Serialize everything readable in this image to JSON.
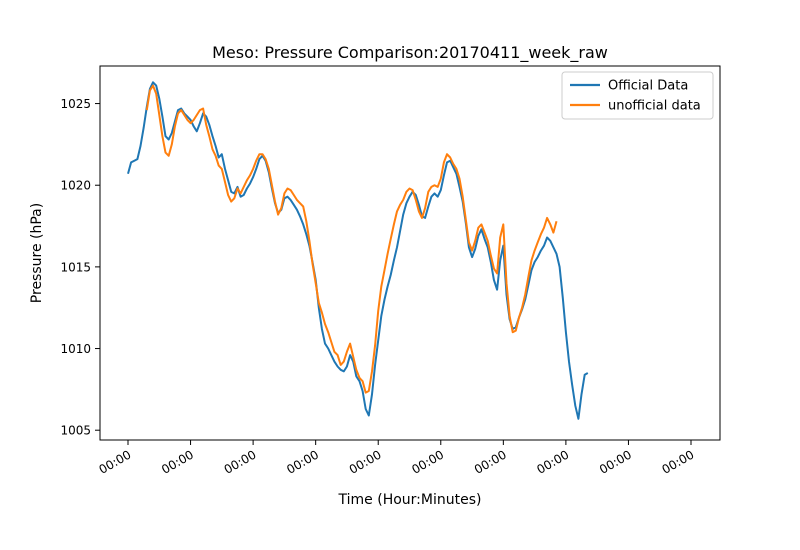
{
  "chart_data": {
    "type": "line",
    "title": "Meso: Pressure Comparison:20170411_week_raw",
    "xlabel": "Time (Hour:Minutes)",
    "ylabel": "Pressure (hPa)",
    "xlim": [
      0,
      9
    ],
    "ylim": [
      1004.4,
      1027.3
    ],
    "x_ticks": [
      0,
      1,
      2,
      3,
      4,
      5,
      6,
      7,
      8,
      9
    ],
    "x_tick_labels": [
      "00:00",
      "00:00",
      "00:00",
      "00:00",
      "00:00",
      "00:00",
      "00:00",
      "00:00",
      "00:00",
      "00:00"
    ],
    "y_ticks": [
      1005,
      1010,
      1015,
      1020,
      1025
    ],
    "grid": false,
    "legend_position": "top-right",
    "series": [
      {
        "name": "Official Data",
        "color": "#1f77b4",
        "points": [
          [
            0.0,
            1020.7
          ],
          [
            0.05,
            1021.4
          ],
          [
            0.1,
            1021.5
          ],
          [
            0.15,
            1021.6
          ],
          [
            0.2,
            1022.4
          ],
          [
            0.25,
            1023.5
          ],
          [
            0.3,
            1024.8
          ],
          [
            0.35,
            1025.9
          ],
          [
            0.4,
            1026.3
          ],
          [
            0.45,
            1026.1
          ],
          [
            0.5,
            1025.3
          ],
          [
            0.55,
            1024.2
          ],
          [
            0.6,
            1023.0
          ],
          [
            0.65,
            1022.8
          ],
          [
            0.7,
            1023.2
          ],
          [
            0.75,
            1023.9
          ],
          [
            0.8,
            1024.6
          ],
          [
            0.85,
            1024.7
          ],
          [
            0.9,
            1024.4
          ],
          [
            0.95,
            1024.2
          ],
          [
            1.0,
            1024.0
          ],
          [
            1.05,
            1023.6
          ],
          [
            1.1,
            1023.3
          ],
          [
            1.15,
            1023.8
          ],
          [
            1.2,
            1024.4
          ],
          [
            1.25,
            1024.2
          ],
          [
            1.3,
            1023.7
          ],
          [
            1.35,
            1023.0
          ],
          [
            1.4,
            1022.4
          ],
          [
            1.45,
            1021.7
          ],
          [
            1.5,
            1021.9
          ],
          [
            1.55,
            1021.0
          ],
          [
            1.6,
            1020.3
          ],
          [
            1.65,
            1019.6
          ],
          [
            1.7,
            1019.5
          ],
          [
            1.75,
            1019.9
          ],
          [
            1.8,
            1019.3
          ],
          [
            1.85,
            1019.4
          ],
          [
            1.9,
            1019.8
          ],
          [
            1.95,
            1020.1
          ],
          [
            2.0,
            1020.5
          ],
          [
            2.05,
            1021.0
          ],
          [
            2.1,
            1021.6
          ],
          [
            2.15,
            1021.8
          ],
          [
            2.2,
            1021.5
          ],
          [
            2.25,
            1020.8
          ],
          [
            2.3,
            1019.8
          ],
          [
            2.35,
            1018.9
          ],
          [
            2.4,
            1018.3
          ],
          [
            2.45,
            1018.5
          ],
          [
            2.5,
            1019.2
          ],
          [
            2.55,
            1019.3
          ],
          [
            2.6,
            1019.1
          ],
          [
            2.65,
            1018.8
          ],
          [
            2.7,
            1018.5
          ],
          [
            2.75,
            1018.1
          ],
          [
            2.8,
            1017.6
          ],
          [
            2.85,
            1017.0
          ],
          [
            2.9,
            1016.3
          ],
          [
            2.95,
            1015.3
          ],
          [
            3.0,
            1014.2
          ],
          [
            3.05,
            1012.5
          ],
          [
            3.1,
            1011.2
          ],
          [
            3.15,
            1010.3
          ],
          [
            3.2,
            1010.0
          ],
          [
            3.25,
            1009.6
          ],
          [
            3.3,
            1009.2
          ],
          [
            3.35,
            1008.9
          ],
          [
            3.4,
            1008.7
          ],
          [
            3.45,
            1008.6
          ],
          [
            3.5,
            1008.9
          ],
          [
            3.55,
            1009.6
          ],
          [
            3.6,
            1009.2
          ],
          [
            3.65,
            1008.3
          ],
          [
            3.7,
            1008.0
          ],
          [
            3.75,
            1007.4
          ],
          [
            3.8,
            1006.3
          ],
          [
            3.85,
            1005.9
          ],
          [
            3.9,
            1007.2
          ],
          [
            3.95,
            1009.0
          ],
          [
            4.0,
            1010.5
          ],
          [
            4.05,
            1012.0
          ],
          [
            4.1,
            1013.0
          ],
          [
            4.15,
            1013.8
          ],
          [
            4.2,
            1014.5
          ],
          [
            4.25,
            1015.4
          ],
          [
            4.3,
            1016.2
          ],
          [
            4.35,
            1017.2
          ],
          [
            4.4,
            1018.2
          ],
          [
            4.45,
            1018.9
          ],
          [
            4.5,
            1019.3
          ],
          [
            4.55,
            1019.6
          ],
          [
            4.6,
            1019.4
          ],
          [
            4.65,
            1018.8
          ],
          [
            4.7,
            1018.1
          ],
          [
            4.75,
            1018.0
          ],
          [
            4.8,
            1018.7
          ],
          [
            4.85,
            1019.3
          ],
          [
            4.9,
            1019.5
          ],
          [
            4.95,
            1019.3
          ],
          [
            5.0,
            1019.7
          ],
          [
            5.05,
            1020.6
          ],
          [
            5.1,
            1021.4
          ],
          [
            5.15,
            1021.5
          ],
          [
            5.2,
            1021.1
          ],
          [
            5.25,
            1020.7
          ],
          [
            5.3,
            1019.9
          ],
          [
            5.35,
            1019.0
          ],
          [
            5.4,
            1017.7
          ],
          [
            5.45,
            1016.2
          ],
          [
            5.5,
            1015.6
          ],
          [
            5.55,
            1016.1
          ],
          [
            5.6,
            1016.9
          ],
          [
            5.65,
            1017.3
          ],
          [
            5.7,
            1016.7
          ],
          [
            5.75,
            1016.2
          ],
          [
            5.8,
            1015.3
          ],
          [
            5.85,
            1014.2
          ],
          [
            5.9,
            1013.6
          ],
          [
            5.95,
            1015.4
          ],
          [
            6.0,
            1016.3
          ],
          [
            6.05,
            1013.3
          ],
          [
            6.1,
            1011.8
          ],
          [
            6.15,
            1011.2
          ],
          [
            6.2,
            1011.3
          ],
          [
            6.25,
            1011.9
          ],
          [
            6.3,
            1012.4
          ],
          [
            6.35,
            1013.0
          ],
          [
            6.4,
            1013.9
          ],
          [
            6.45,
            1014.8
          ],
          [
            6.5,
            1015.3
          ],
          [
            6.55,
            1015.6
          ],
          [
            6.6,
            1016.0
          ],
          [
            6.65,
            1016.3
          ],
          [
            6.7,
            1016.8
          ],
          [
            6.75,
            1016.6
          ],
          [
            6.8,
            1016.2
          ],
          [
            6.85,
            1015.8
          ],
          [
            6.9,
            1015.0
          ],
          [
            6.95,
            1013.1
          ],
          [
            7.0,
            1011.0
          ],
          [
            7.05,
            1009.2
          ],
          [
            7.1,
            1007.8
          ],
          [
            7.15,
            1006.5
          ],
          [
            7.2,
            1005.7
          ],
          [
            7.25,
            1007.2
          ],
          [
            7.3,
            1008.4
          ],
          [
            7.35,
            1008.5
          ]
        ]
      },
      {
        "name": "unofficial data",
        "color": "#ff7f0e",
        "points": [
          [
            0.3,
            1024.6
          ],
          [
            0.35,
            1025.8
          ],
          [
            0.4,
            1026.1
          ],
          [
            0.45,
            1025.6
          ],
          [
            0.5,
            1024.3
          ],
          [
            0.55,
            1023.0
          ],
          [
            0.6,
            1022.0
          ],
          [
            0.65,
            1021.8
          ],
          [
            0.7,
            1022.5
          ],
          [
            0.75,
            1023.6
          ],
          [
            0.8,
            1024.4
          ],
          [
            0.85,
            1024.6
          ],
          [
            0.9,
            1024.3
          ],
          [
            0.95,
            1024.0
          ],
          [
            1.0,
            1023.8
          ],
          [
            1.05,
            1024.0
          ],
          [
            1.1,
            1024.3
          ],
          [
            1.15,
            1024.6
          ],
          [
            1.2,
            1024.7
          ],
          [
            1.25,
            1023.7
          ],
          [
            1.3,
            1023.0
          ],
          [
            1.35,
            1022.2
          ],
          [
            1.4,
            1021.8
          ],
          [
            1.45,
            1021.2
          ],
          [
            1.5,
            1021.0
          ],
          [
            1.55,
            1020.2
          ],
          [
            1.6,
            1019.4
          ],
          [
            1.65,
            1019.0
          ],
          [
            1.7,
            1019.2
          ],
          [
            1.75,
            1019.8
          ],
          [
            1.8,
            1019.5
          ],
          [
            1.85,
            1019.9
          ],
          [
            1.9,
            1020.3
          ],
          [
            1.95,
            1020.6
          ],
          [
            2.0,
            1021.0
          ],
          [
            2.05,
            1021.5
          ],
          [
            2.1,
            1021.9
          ],
          [
            2.15,
            1021.9
          ],
          [
            2.2,
            1021.6
          ],
          [
            2.25,
            1021.0
          ],
          [
            2.3,
            1020.0
          ],
          [
            2.35,
            1019.0
          ],
          [
            2.4,
            1018.2
          ],
          [
            2.45,
            1018.6
          ],
          [
            2.5,
            1019.5
          ],
          [
            2.55,
            1019.8
          ],
          [
            2.6,
            1019.7
          ],
          [
            2.65,
            1019.4
          ],
          [
            2.7,
            1019.1
          ],
          [
            2.75,
            1018.9
          ],
          [
            2.8,
            1018.7
          ],
          [
            2.85,
            1017.8
          ],
          [
            2.9,
            1016.6
          ],
          [
            2.95,
            1015.2
          ],
          [
            3.0,
            1014.0
          ],
          [
            3.05,
            1012.8
          ],
          [
            3.1,
            1012.2
          ],
          [
            3.15,
            1011.5
          ],
          [
            3.2,
            1011.0
          ],
          [
            3.25,
            1010.4
          ],
          [
            3.3,
            1009.8
          ],
          [
            3.35,
            1009.6
          ],
          [
            3.4,
            1009.0
          ],
          [
            3.45,
            1009.2
          ],
          [
            3.5,
            1009.8
          ],
          [
            3.55,
            1010.3
          ],
          [
            3.6,
            1009.5
          ],
          [
            3.65,
            1008.7
          ],
          [
            3.7,
            1008.2
          ],
          [
            3.75,
            1008.0
          ],
          [
            3.8,
            1007.3
          ],
          [
            3.85,
            1007.4
          ],
          [
            3.9,
            1008.6
          ],
          [
            3.95,
            1010.2
          ],
          [
            4.0,
            1012.3
          ],
          [
            4.05,
            1013.8
          ],
          [
            4.1,
            1014.8
          ],
          [
            4.15,
            1015.8
          ],
          [
            4.2,
            1016.7
          ],
          [
            4.25,
            1017.6
          ],
          [
            4.3,
            1018.4
          ],
          [
            4.35,
            1018.8
          ],
          [
            4.4,
            1019.1
          ],
          [
            4.45,
            1019.6
          ],
          [
            4.5,
            1019.8
          ],
          [
            4.55,
            1019.7
          ],
          [
            4.6,
            1019.1
          ],
          [
            4.65,
            1018.4
          ],
          [
            4.7,
            1018.0
          ],
          [
            4.75,
            1018.6
          ],
          [
            4.8,
            1019.6
          ],
          [
            4.85,
            1019.9
          ],
          [
            4.9,
            1020.0
          ],
          [
            4.95,
            1019.9
          ],
          [
            5.0,
            1020.4
          ],
          [
            5.05,
            1021.4
          ],
          [
            5.1,
            1021.9
          ],
          [
            5.15,
            1021.7
          ],
          [
            5.2,
            1021.3
          ],
          [
            5.25,
            1021.0
          ],
          [
            5.3,
            1020.4
          ],
          [
            5.35,
            1019.3
          ],
          [
            5.4,
            1017.9
          ],
          [
            5.45,
            1016.5
          ],
          [
            5.5,
            1016.0
          ],
          [
            5.55,
            1016.6
          ],
          [
            5.6,
            1017.4
          ],
          [
            5.65,
            1017.6
          ],
          [
            5.7,
            1017.1
          ],
          [
            5.75,
            1016.6
          ],
          [
            5.8,
            1015.7
          ],
          [
            5.85,
            1014.9
          ],
          [
            5.9,
            1014.6
          ],
          [
            5.95,
            1016.8
          ],
          [
            6.0,
            1017.6
          ],
          [
            6.05,
            1014.0
          ],
          [
            6.1,
            1012.0
          ],
          [
            6.15,
            1011.0
          ],
          [
            6.2,
            1011.1
          ],
          [
            6.25,
            1011.9
          ],
          [
            6.3,
            1012.5
          ],
          [
            6.35,
            1013.3
          ],
          [
            6.4,
            1014.4
          ],
          [
            6.45,
            1015.4
          ],
          [
            6.5,
            1016.0
          ],
          [
            6.55,
            1016.5
          ],
          [
            6.6,
            1017.0
          ],
          [
            6.65,
            1017.4
          ],
          [
            6.7,
            1018.0
          ],
          [
            6.75,
            1017.6
          ],
          [
            6.8,
            1017.1
          ],
          [
            6.85,
            1017.8
          ]
        ]
      }
    ]
  }
}
